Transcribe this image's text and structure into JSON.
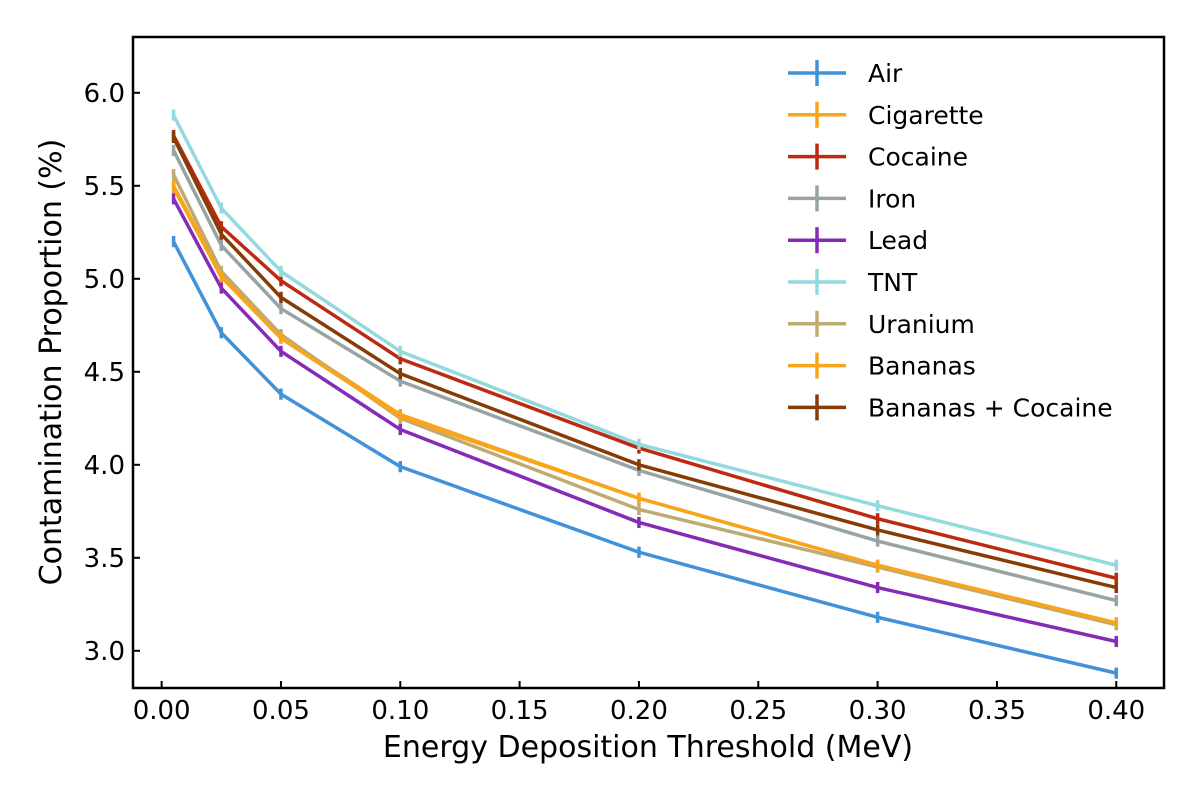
{
  "chart_data": {
    "type": "line",
    "title": "",
    "xlabel": "Energy Deposition Threshold (MeV)",
    "ylabel": "Contamination Proportion (%)",
    "xlim": [
      -0.012,
      0.42
    ],
    "ylim": [
      2.8,
      6.3
    ],
    "grid": false,
    "legend_position": "top-right",
    "x": [
      0.005,
      0.025,
      0.05,
      0.1,
      0.2,
      0.3,
      0.4
    ],
    "xticks": [
      0.0,
      0.05,
      0.1,
      0.15,
      0.2,
      0.25,
      0.3,
      0.35,
      0.4
    ],
    "xtick_labels": [
      "0.00",
      "0.05",
      "0.10",
      "0.15",
      "0.20",
      "0.25",
      "0.30",
      "0.35",
      "0.40"
    ],
    "yticks": [
      3.0,
      3.5,
      4.0,
      4.5,
      5.0,
      5.5,
      6.0
    ],
    "ytick_labels": [
      "3.0",
      "3.5",
      "4.0",
      "4.5",
      "5.0",
      "5.5",
      "6.0"
    ],
    "series": [
      {
        "name": "Air",
        "color": "#4192d9",
        "values": [
          5.2,
          4.71,
          4.38,
          3.99,
          3.53,
          3.18,
          2.88
        ],
        "errors": [
          0.03,
          0.03,
          0.03,
          0.03,
          0.03,
          0.03,
          0.03
        ]
      },
      {
        "name": "Cigarette",
        "color": "#f9a51b",
        "values": [
          5.5,
          5.02,
          4.69,
          4.27,
          3.82,
          3.46,
          3.15
        ],
        "errors": [
          0.03,
          0.03,
          0.03,
          0.03,
          0.03,
          0.03,
          0.03
        ]
      },
      {
        "name": "Cocaine",
        "color": "#bc2a10",
        "values": [
          5.77,
          5.28,
          4.99,
          4.57,
          4.09,
          3.71,
          3.39
        ],
        "errors": [
          0.03,
          0.03,
          0.03,
          0.03,
          0.03,
          0.03,
          0.03
        ]
      },
      {
        "name": "Iron",
        "color": "#98a4a3",
        "values": [
          5.69,
          5.18,
          4.84,
          4.45,
          3.97,
          3.59,
          3.27
        ],
        "errors": [
          0.03,
          0.03,
          0.03,
          0.03,
          0.03,
          0.03,
          0.03
        ]
      },
      {
        "name": "Lead",
        "color": "#852bb7",
        "values": [
          5.43,
          4.95,
          4.61,
          4.19,
          3.69,
          3.34,
          3.05
        ],
        "errors": [
          0.03,
          0.03,
          0.03,
          0.03,
          0.03,
          0.03,
          0.03
        ]
      },
      {
        "name": "TNT",
        "color": "#93dade",
        "values": [
          5.88,
          5.38,
          5.04,
          4.61,
          4.11,
          3.78,
          3.46
        ],
        "errors": [
          0.03,
          0.03,
          0.03,
          0.03,
          0.03,
          0.03,
          0.03
        ]
      },
      {
        "name": "Uranium",
        "color": "#bfab71",
        "values": [
          5.56,
          5.04,
          4.7,
          4.25,
          3.76,
          3.45,
          3.14
        ],
        "errors": [
          0.03,
          0.03,
          0.03,
          0.03,
          0.03,
          0.03,
          0.03
        ]
      },
      {
        "name": "Bananas",
        "color": "#f9a51b",
        "values": [
          5.49,
          5.01,
          4.68,
          4.26,
          3.82,
          3.46,
          3.15
        ],
        "errors": [
          0.03,
          0.03,
          0.03,
          0.03,
          0.03,
          0.03,
          0.03
        ]
      },
      {
        "name": "Bananas + Cocaine",
        "color": "#873b07",
        "values": [
          5.76,
          5.24,
          4.9,
          4.49,
          4.0,
          3.65,
          3.34
        ],
        "errors": [
          0.03,
          0.03,
          0.03,
          0.03,
          0.03,
          0.03,
          0.03
        ]
      }
    ]
  }
}
